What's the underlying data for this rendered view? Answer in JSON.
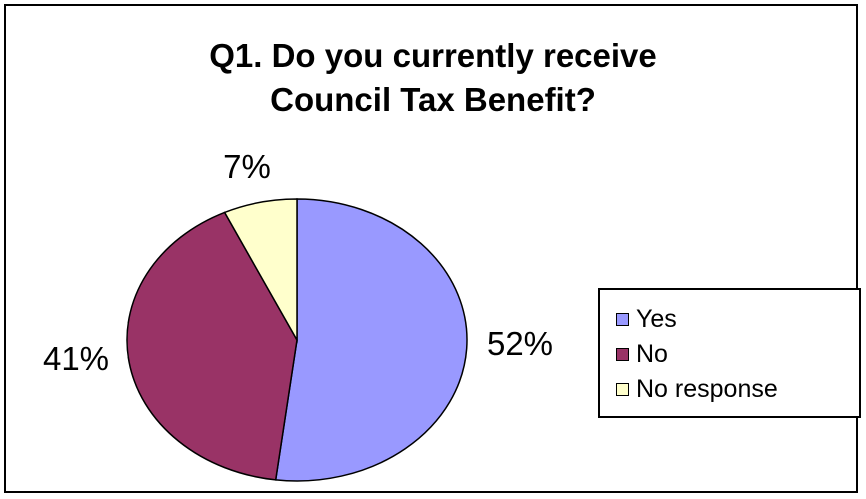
{
  "chart_data": {
    "type": "pie",
    "title": "Q1. Do you currently receive\nCouncil Tax Benefit?",
    "slices": [
      {
        "label": "Yes",
        "value": 52,
        "display": "52%",
        "color": "#9999ff"
      },
      {
        "label": "No",
        "value": 41,
        "display": "41%",
        "color": "#993366"
      },
      {
        "label": "No response",
        "value": 7,
        "display": "7%",
        "color": "#ffffcc"
      }
    ],
    "legend": {
      "position": "right"
    }
  }
}
